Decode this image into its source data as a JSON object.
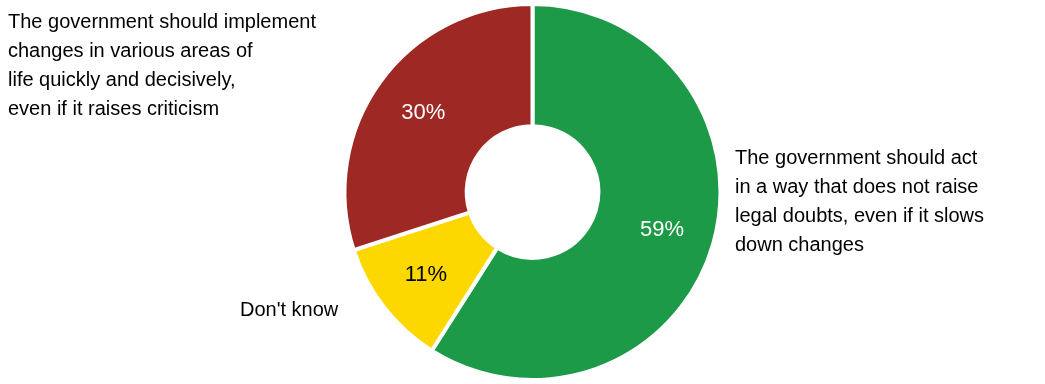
{
  "chart_data": {
    "type": "doughnut",
    "categories": [
      "The government should act\nin a way that does not raise\nlegal doubts, even if it slows\ndown changes",
      "Don't know",
      "The government should implement\nchanges in various areas of\nlife quickly and decisively,\neven if it raises criticism"
    ],
    "values": [
      59,
      11,
      30
    ],
    "value_labels": [
      "59%",
      "11%",
      "30%"
    ],
    "colors": [
      "#1c9a48",
      "#fcd800",
      "#9e2824"
    ],
    "data_labels": true,
    "legend": false
  }
}
